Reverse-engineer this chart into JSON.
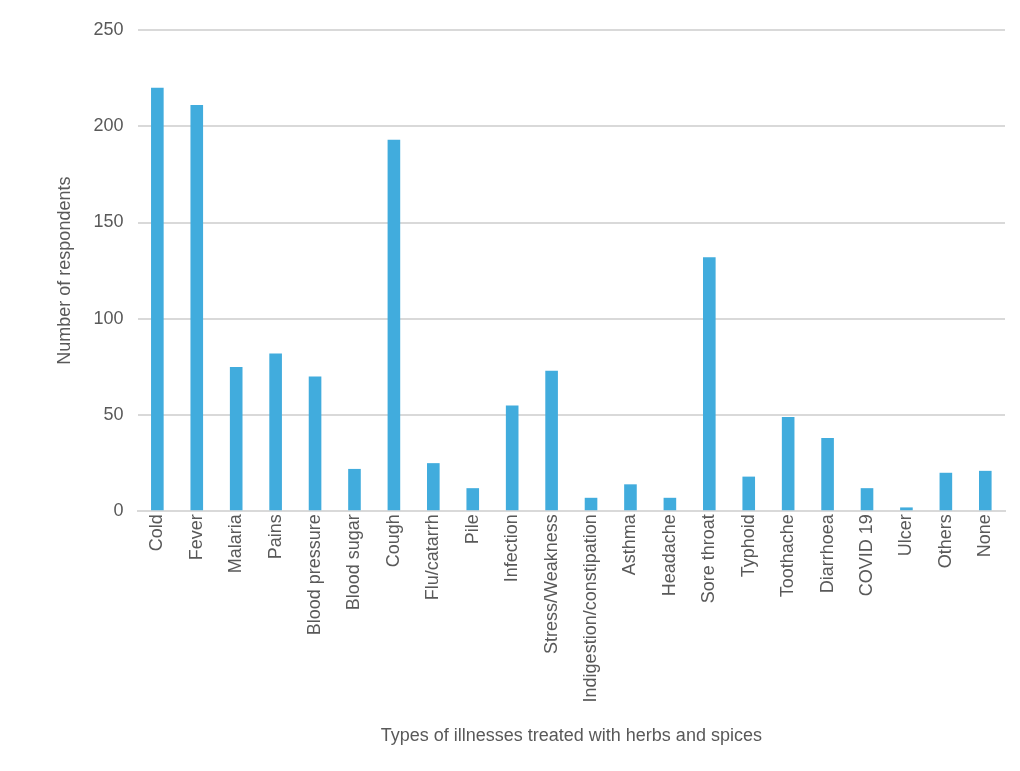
{
  "chart_data": {
    "type": "bar",
    "xlabel": "Types of illnesses treated with herbs and spices",
    "ylabel": "Number of respondents",
    "categories": [
      "Cold",
      "Fever",
      "Malaria",
      "Pains",
      "Blood pressure",
      "Blood sugar",
      "Cough",
      "Flu/catarrh",
      "Pile",
      "Infection",
      "Stress/Weakness",
      "Indigestion/constipation",
      "Asthma",
      "Headache",
      "Sore throat",
      "Typhoid",
      "Toothache",
      "Diarrhoea",
      "COVID 19",
      "Ulcer",
      "Others",
      "None"
    ],
    "values": [
      220,
      211,
      75,
      82,
      70,
      22,
      193,
      25,
      12,
      55,
      73,
      7,
      14,
      7,
      132,
      18,
      49,
      38,
      12,
      2,
      20,
      21
    ],
    "color": "#41acdd",
    "ylim": [
      0,
      250
    ],
    "yticks": [
      0,
      50,
      100,
      150,
      200,
      250
    ],
    "grid": "y",
    "legend": false
  }
}
